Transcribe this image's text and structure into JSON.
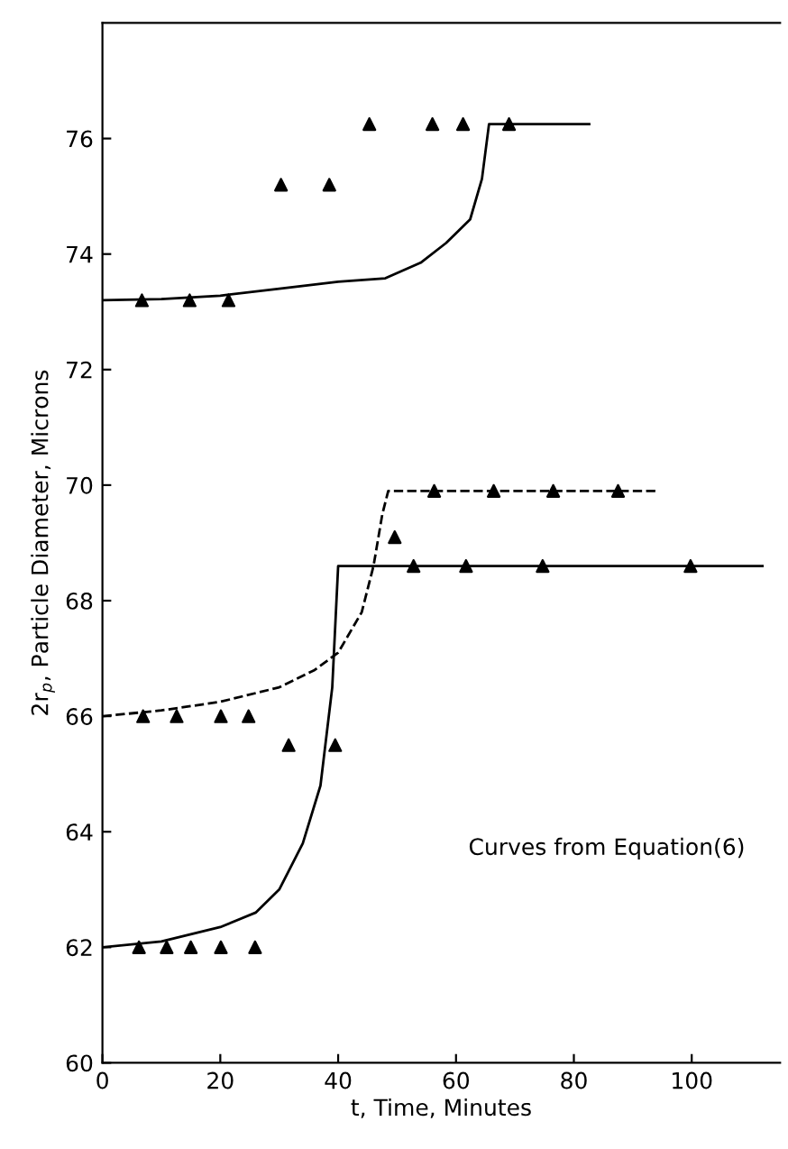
{
  "chart_data": {
    "type": "scatter",
    "xlabel": "t, Time, Minutes",
    "ylabel": "2r$_{p}$, Particle Diameter, Microns",
    "xlim": [
      0,
      115
    ],
    "ylim": [
      60,
      78
    ],
    "xticks": [
      0,
      20,
      40,
      60,
      80,
      100
    ],
    "yticks": [
      60,
      62,
      64,
      66,
      68,
      70,
      72,
      74,
      76
    ],
    "grid": false,
    "legend": false,
    "annotations": [
      "Curves from Equation(6)"
    ],
    "series": [
      {
        "type": "line",
        "color": "#000000",
        "line_style": "solid",
        "marker": "none",
        "x": [
          0,
          10,
          20,
          30,
          40,
          48,
          54,
          58.3,
          62.4,
          64.4,
          65.6,
          82.6
        ],
        "values": [
          73.2,
          73.22,
          73.28,
          73.4,
          73.52,
          73.58,
          73.85,
          74.19,
          74.6,
          75.3,
          76.25,
          76.25
        ]
      },
      {
        "color": "#000000",
        "marker": "triangle",
        "x": [
          6.7,
          14.8,
          21.4,
          30.3,
          38.5,
          45.3,
          56,
          61.2,
          69
        ],
        "values": [
          73.2,
          73.2,
          73.2,
          75.2,
          75.2,
          76.25,
          76.25,
          76.25,
          76.25
        ]
      },
      {
        "type": "line",
        "color": "#000000",
        "line_style": "dashed",
        "marker": "none",
        "x": [
          0,
          10,
          20,
          30,
          36,
          40,
          44,
          46,
          47.5,
          48.5,
          94.5
        ],
        "values": [
          66.0,
          66.1,
          66.25,
          66.5,
          66.8,
          67.1,
          67.8,
          68.6,
          69.5,
          69.9,
          69.9
        ]
      },
      {
        "color": "#000000",
        "marker": "triangle",
        "x": [
          6.9,
          12.6,
          20.1,
          24.8,
          49.6,
          56.3,
          66.4,
          76.5,
          87.5
        ],
        "values": [
          66.0,
          66.0,
          66.0,
          66.0,
          69.1,
          69.9,
          69.9,
          69.9,
          69.9
        ]
      },
      {
        "type": "line",
        "color": "#000000",
        "line_style": "solid",
        "marker": "none",
        "x": [
          0,
          10,
          20,
          26,
          30,
          34,
          37,
          39,
          40,
          112
        ],
        "values": [
          62.0,
          62.1,
          62.35,
          62.6,
          63.0,
          63.8,
          64.8,
          66.5,
          68.6,
          68.6
        ]
      },
      {
        "color": "#000000",
        "marker": "triangle",
        "x": [
          6.2,
          10.9,
          15,
          20.1,
          25.9,
          31.6,
          39.5,
          52.8,
          61.7,
          74.7,
          99.8
        ],
        "values": [
          62,
          62,
          62,
          62,
          62,
          65.5,
          65.5,
          68.6,
          68.6,
          68.6,
          68.6
        ]
      }
    ]
  }
}
